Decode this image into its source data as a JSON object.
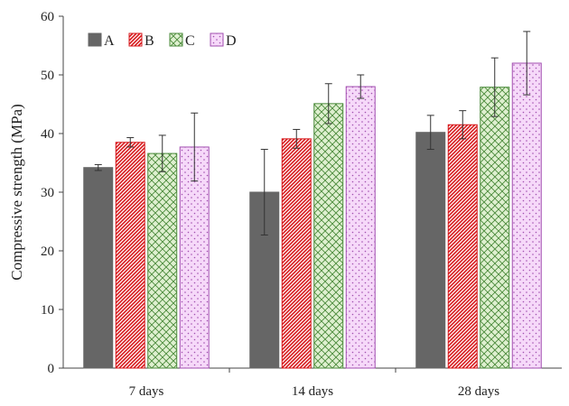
{
  "chart_data": {
    "type": "bar",
    "title": "",
    "xlabel": "",
    "ylabel": "Compressive strength (MPa)",
    "ylim": [
      0,
      60
    ],
    "yticks": [
      0,
      10,
      20,
      30,
      40,
      50,
      60
    ],
    "grid": false,
    "legend_position": "top-left",
    "categories": [
      "7 days",
      "14 days",
      "28 days"
    ],
    "series": [
      {
        "name": "A",
        "color": "#666666",
        "pattern": "solid",
        "values": [
          34.2,
          30.0,
          40.2
        ],
        "errors": [
          0.5,
          7.3,
          2.9
        ]
      },
      {
        "name": "B",
        "color": "#d7191c",
        "pattern": "diagonal",
        "values": [
          38.5,
          39.1,
          41.5
        ],
        "errors": [
          0.8,
          1.6,
          2.4
        ]
      },
      {
        "name": "C",
        "color": "#4a8a3a",
        "pattern": "crosshatch",
        "values": [
          36.6,
          45.1,
          47.9
        ],
        "errors": [
          3.1,
          3.4,
          5.0
        ]
      },
      {
        "name": "D",
        "color": "#a24fb0",
        "pattern": "dots",
        "values": [
          37.7,
          48.0,
          52.0
        ],
        "errors": [
          5.8,
          2.0,
          5.4
        ]
      }
    ]
  }
}
